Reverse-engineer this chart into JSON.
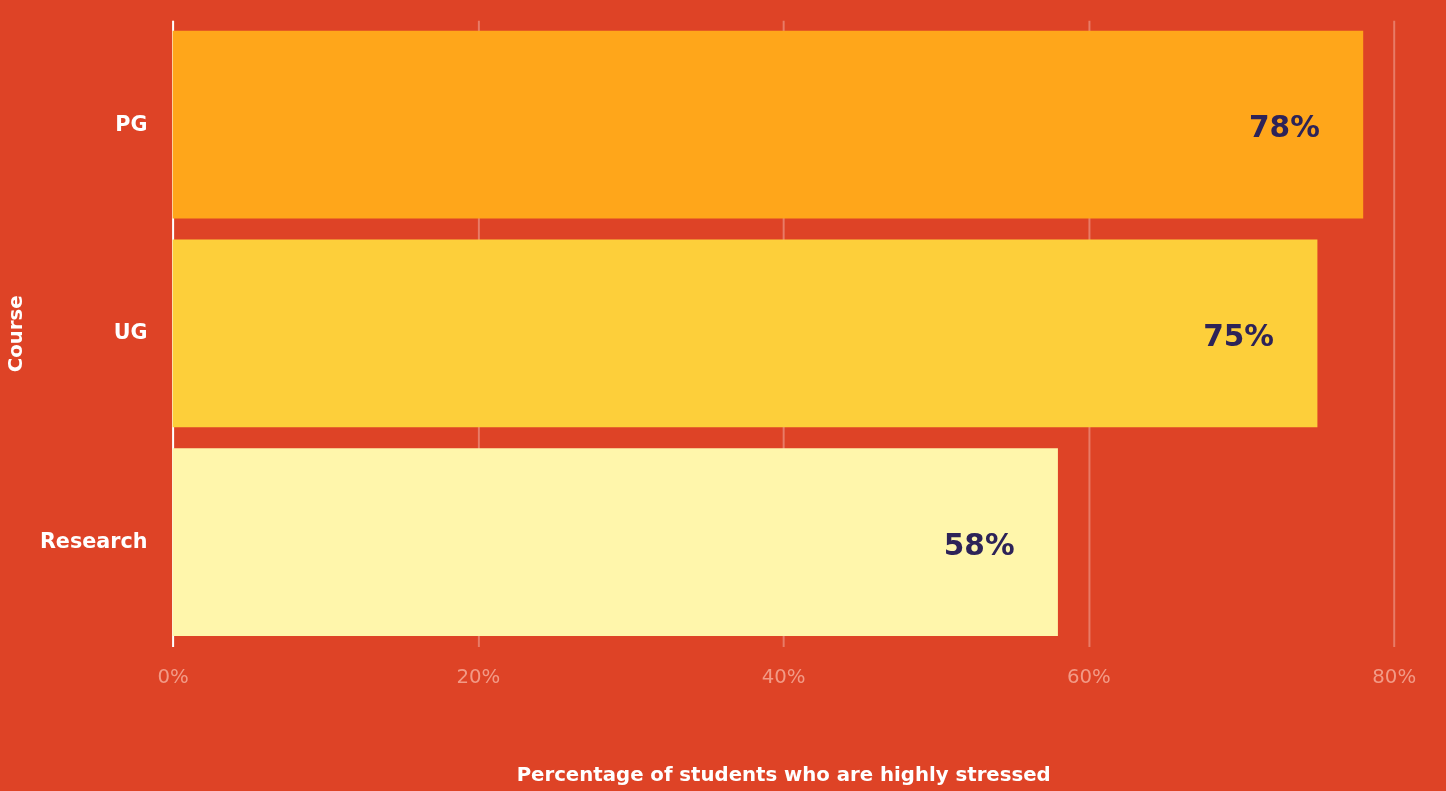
{
  "chart_data": {
    "type": "bar",
    "orientation": "horizontal",
    "xlabel": "Percentage of students who are highly stressed",
    "ylabel": "Course",
    "categories": [
      "PG",
      "UG",
      "Research"
    ],
    "values": [
      78,
      75,
      58
    ],
    "colors": [
      "#ffa61a",
      "#fdcf3a",
      "#fff6ab"
    ],
    "value_labels": [
      "78%",
      "75%",
      "58%"
    ],
    "xlim": [
      0,
      80
    ],
    "xticks": [
      {
        "value": 0,
        "label": "0%"
      },
      {
        "value": 20,
        "label": "20%"
      },
      {
        "value": 40,
        "label": "40%"
      },
      {
        "value": 60,
        "label": "60%"
      },
      {
        "value": 80,
        "label": "80%"
      }
    ],
    "grid": "x"
  }
}
